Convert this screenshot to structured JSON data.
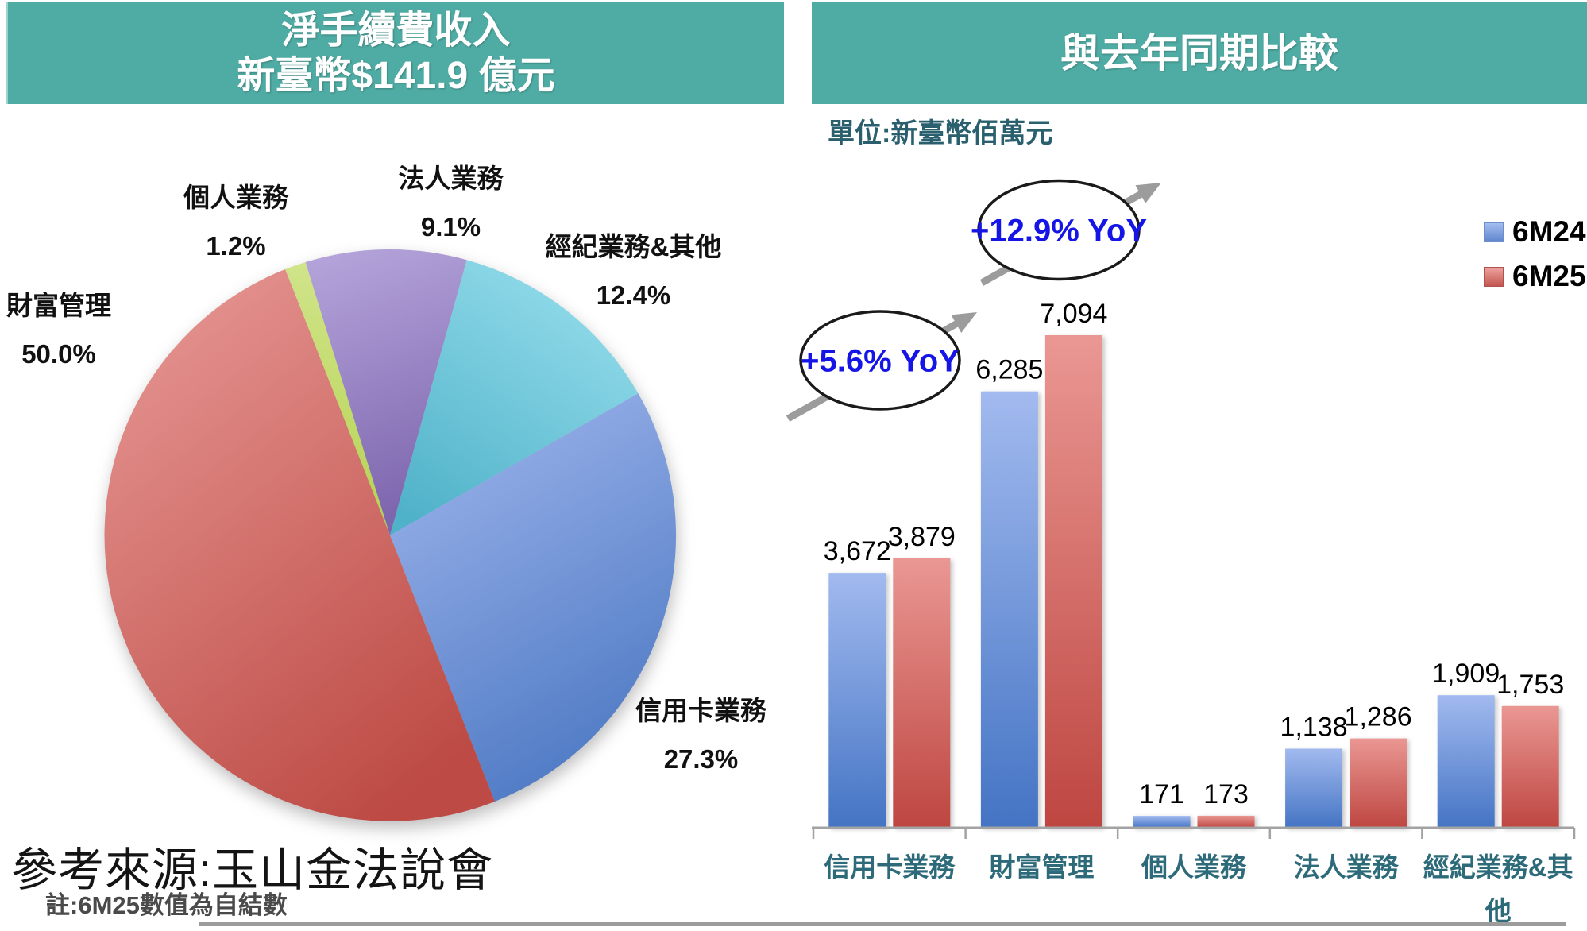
{
  "left_panel": {
    "header": {
      "line1": "淨手續費收入",
      "line2": "新臺幣$141.9 億元"
    },
    "source_text": "參考來源:玉山金法說會",
    "note_text": "註:6M25數值為自結數"
  },
  "right_panel": {
    "header": {
      "title": "與去年同期比較"
    },
    "unit_label": "單位:新臺幣佰萬元"
  },
  "colors": {
    "header_teal": "#4FACA4",
    "annotation_blue": "#1515E6",
    "axis_gray": "#A3A3A3",
    "category_label_teal": "#2E6B7A",
    "series_6M24_blue": "#5B84CE",
    "series_6M25_red": "#CC5550"
  },
  "chart_data": [
    {
      "type": "pie",
      "title": "淨手續費收入 新臺幣$141.9 億元",
      "total_label": "新臺幣$141.9 億元",
      "start_angle_deg": -21.5,
      "direction": "clockwise",
      "legend_position": "none",
      "segments": [
        {
          "label": "個人業務",
          "value_pct": 1.2,
          "pct_label": "1.2%",
          "color": "#C5DB6F"
        },
        {
          "label": "法人業務",
          "value_pct": 9.1,
          "pct_label": "9.1%",
          "color": "#9583C4"
        },
        {
          "label": "經紀業務&其他",
          "value_pct": 12.4,
          "pct_label": "12.4%",
          "color": "#6FC9DD"
        },
        {
          "label": "信用卡業務",
          "value_pct": 27.3,
          "pct_label": "27.3%",
          "color": "#6C93D6"
        },
        {
          "label": "財富管理",
          "value_pct": 50.0,
          "pct_label": "50.0%",
          "color": "#D26862"
        }
      ]
    },
    {
      "type": "bar",
      "title": "與去年同期比較",
      "unit": "新臺幣佰萬元",
      "ylim": [
        0,
        7500
      ],
      "grid": false,
      "legend_position": "top-right",
      "categories": [
        "信用卡業務",
        "財富管理",
        "個人業務",
        "法人業務",
        "經紀業務&其他"
      ],
      "category_tick_lines": [
        [
          "信用卡業務"
        ],
        [
          "財富管理"
        ],
        [
          "個人業務"
        ],
        [
          "法人業務"
        ],
        [
          "經紀業務&其",
          "他"
        ]
      ],
      "series": [
        {
          "name": "6M24",
          "color": "#5B84CE",
          "values": [
            3672,
            6285,
            171,
            1138,
            1909
          ]
        },
        {
          "name": "6M25",
          "color": "#CC5550",
          "values": [
            3879,
            7094,
            173,
            1286,
            1753
          ]
        }
      ],
      "value_labels": [
        [
          "3,672",
          "6,285",
          "171",
          "1,138",
          "1,909"
        ],
        [
          "3,879",
          "7,094",
          "173",
          "1,286",
          "1,753"
        ]
      ],
      "annotations": [
        {
          "text": "+5.6% YoY",
          "target_category": "信用卡業務"
        },
        {
          "text": "+12.9% YoY",
          "target_category": "財富管理"
        }
      ]
    }
  ]
}
